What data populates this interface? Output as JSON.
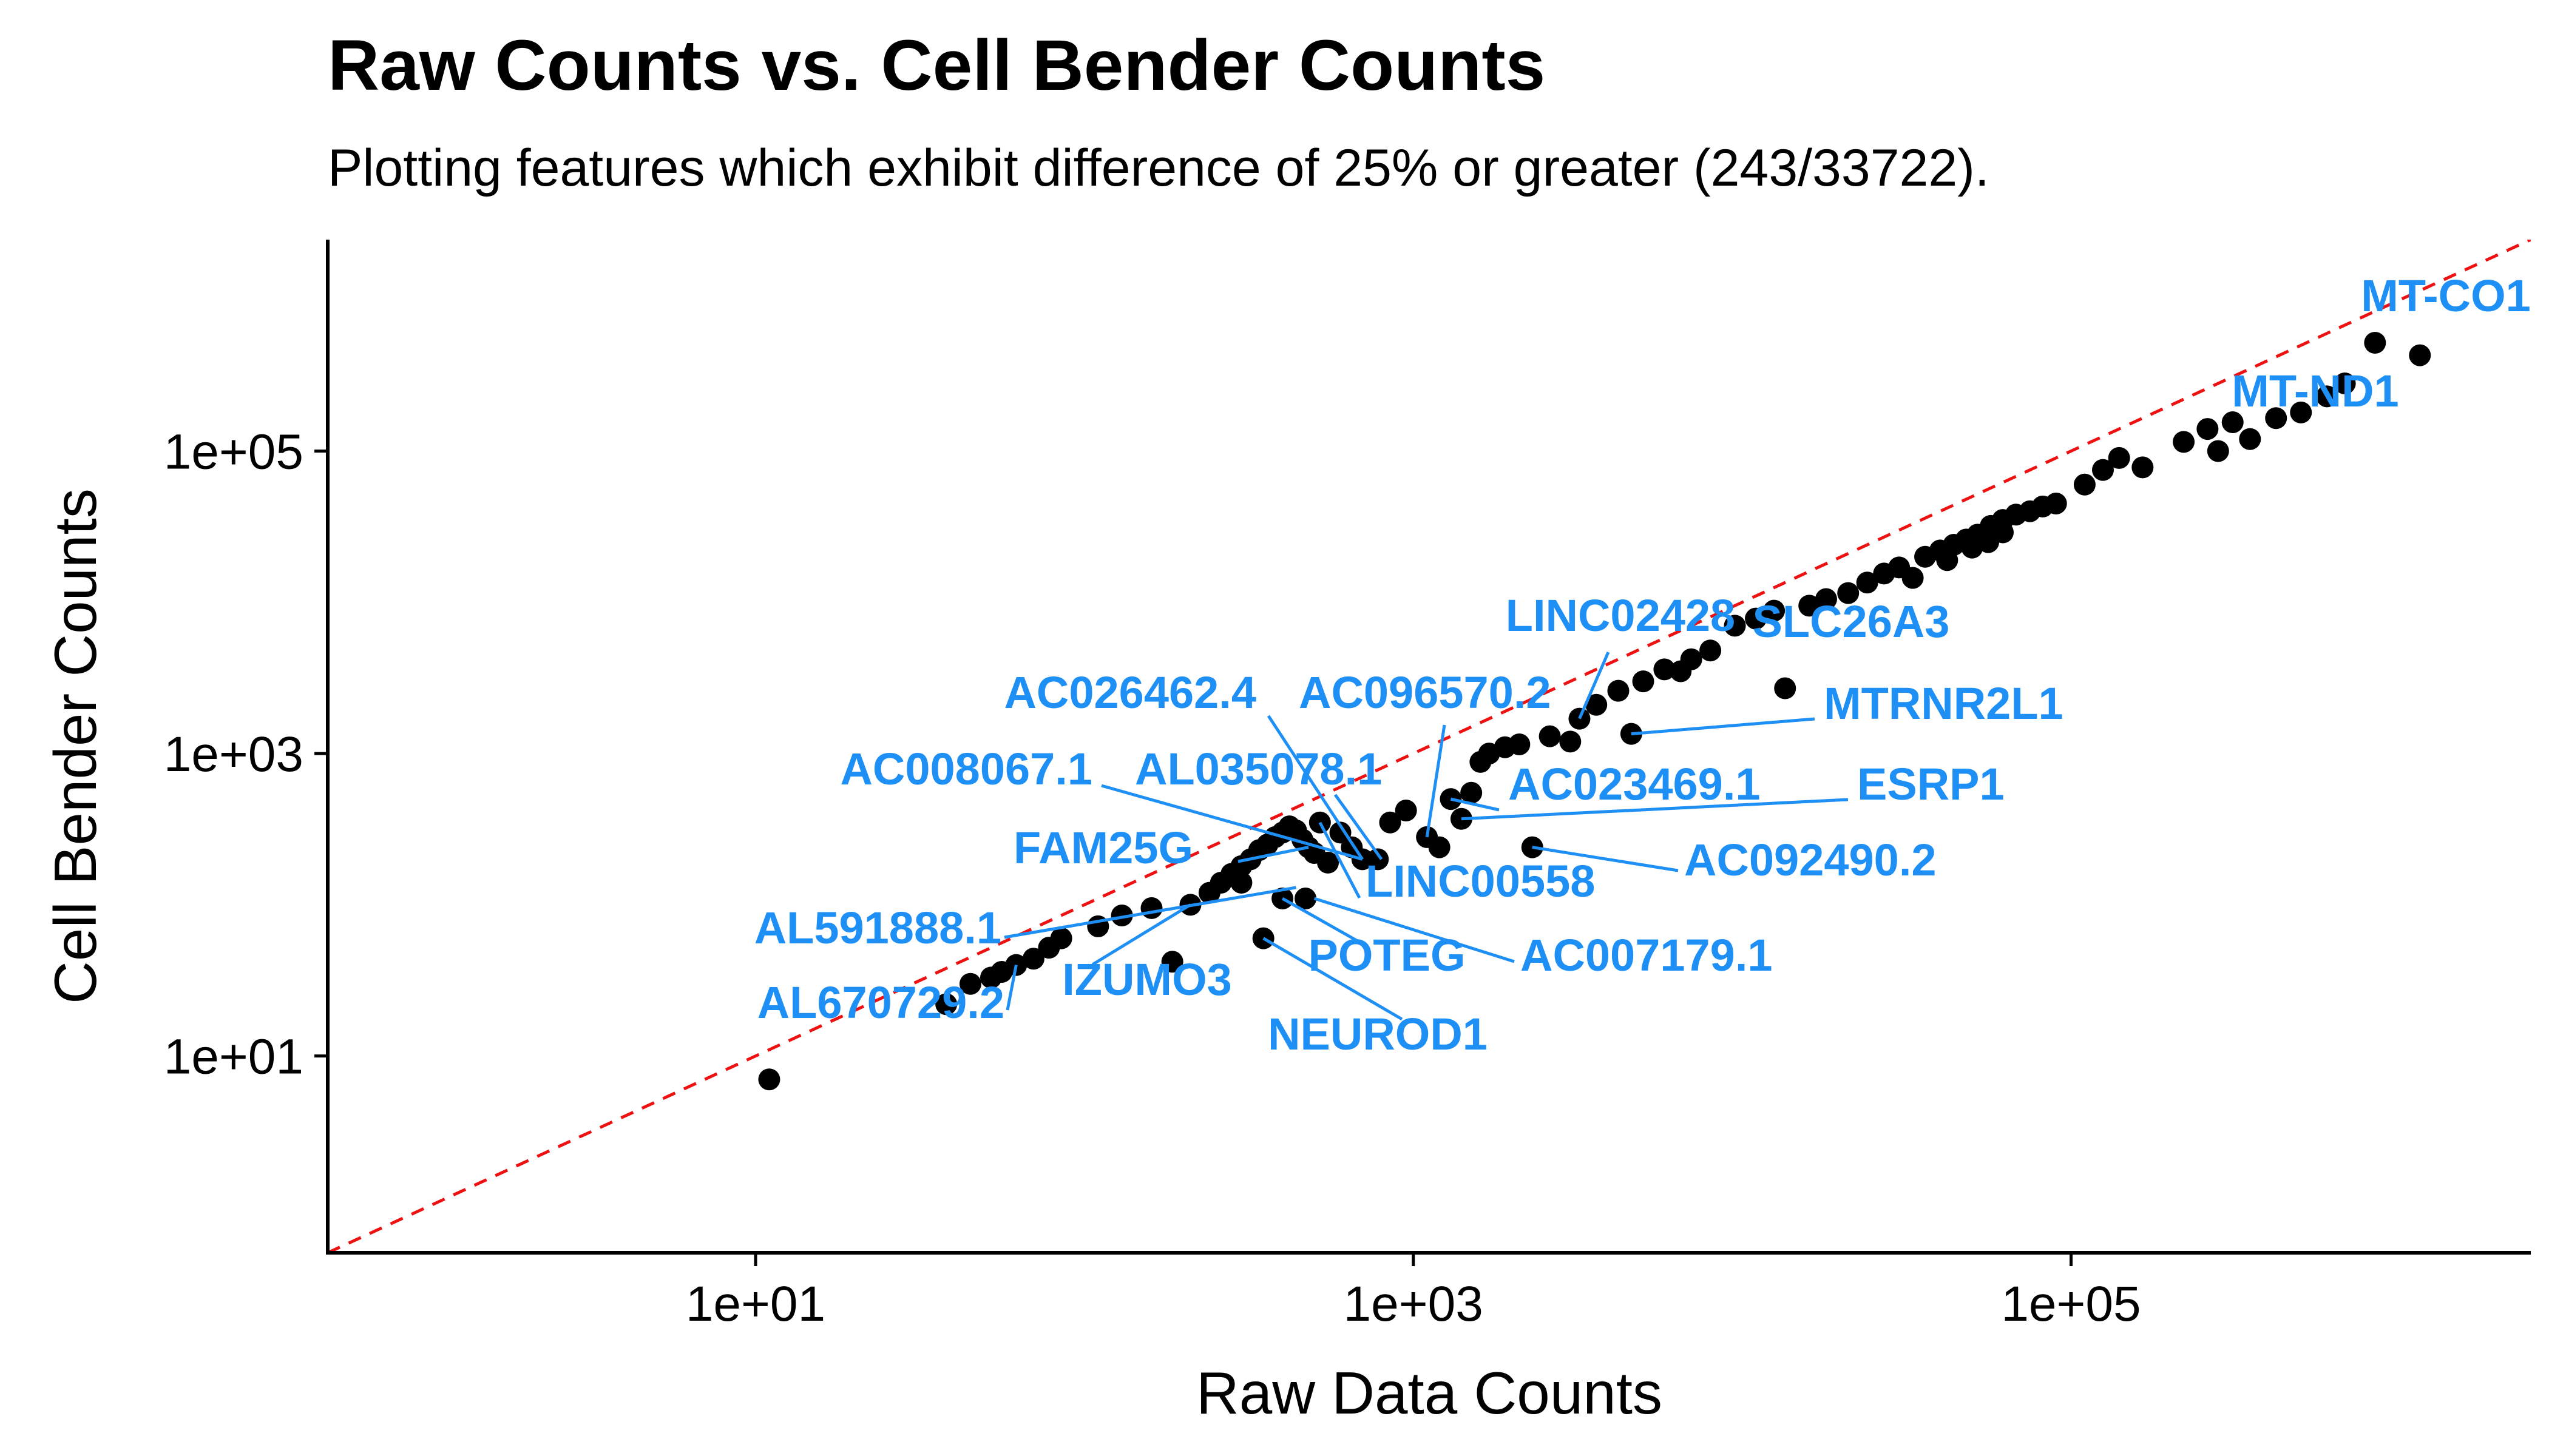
{
  "chart_data": {
    "type": "scatter",
    "title": "Raw Counts vs. Cell Bender Counts",
    "subtitle": "Plotting features which exhibit difference of 25% or greater (243/33722).",
    "xlabel": "Raw Data Counts",
    "ylabel": "Cell Bender Counts",
    "x_scale": "log10",
    "y_scale": "log10",
    "xlim": [
      0.5,
      2500000
    ],
    "ylim": [
      0.5,
      2500000
    ],
    "x_ticks": [
      10,
      1000,
      100000
    ],
    "y_ticks": [
      10,
      1000,
      100000
    ],
    "x_tick_labels": [
      "1e+01",
      "1e+03",
      "1e+05"
    ],
    "y_tick_labels": [
      "1e+01",
      "1e+03",
      "1e+05"
    ],
    "grid": false,
    "reference_line": {
      "type": "y=x",
      "color": "#ee1111",
      "style": "dashed"
    },
    "point_color": "#000000",
    "label_color": "#1e8ff5",
    "points": [
      {
        "x": 11,
        "y": 7
      },
      {
        "x": 38,
        "y": 22
      },
      {
        "x": 45,
        "y": 30
      },
      {
        "x": 52,
        "y": 33
      },
      {
        "x": 56,
        "y": 36
      },
      {
        "x": 62,
        "y": 40
      },
      {
        "x": 70,
        "y": 44
      },
      {
        "x": 78,
        "y": 52
      },
      {
        "x": 85,
        "y": 60
      },
      {
        "x": 110,
        "y": 72
      },
      {
        "x": 130,
        "y": 85
      },
      {
        "x": 160,
        "y": 95
      },
      {
        "x": 185,
        "y": 42
      },
      {
        "x": 210,
        "y": 100
      },
      {
        "x": 240,
        "y": 120
      },
      {
        "x": 260,
        "y": 140
      },
      {
        "x": 280,
        "y": 160
      },
      {
        "x": 300,
        "y": 180
      },
      {
        "x": 320,
        "y": 200
      },
      {
        "x": 340,
        "y": 230
      },
      {
        "x": 360,
        "y": 250
      },
      {
        "x": 380,
        "y": 280
      },
      {
        "x": 400,
        "y": 300
      },
      {
        "x": 420,
        "y": 330
      },
      {
        "x": 440,
        "y": 310
      },
      {
        "x": 460,
        "y": 270
      },
      {
        "x": 480,
        "y": 240
      },
      {
        "x": 500,
        "y": 220
      },
      {
        "x": 520,
        "y": 350
      },
      {
        "x": 300,
        "y": 140
      },
      {
        "x": 350,
        "y": 60
      },
      {
        "x": 400,
        "y": 110
      },
      {
        "x": 470,
        "y": 110
      },
      {
        "x": 550,
        "y": 190
      },
      {
        "x": 600,
        "y": 300
      },
      {
        "x": 650,
        "y": 240
      },
      {
        "x": 700,
        "y": 200
      },
      {
        "x": 780,
        "y": 200
      },
      {
        "x": 850,
        "y": 350
      },
      {
        "x": 950,
        "y": 420
      },
      {
        "x": 1100,
        "y": 280
      },
      {
        "x": 1200,
        "y": 240
      },
      {
        "x": 1300,
        "y": 500
      },
      {
        "x": 1400,
        "y": 370
      },
      {
        "x": 1500,
        "y": 550
      },
      {
        "x": 1600,
        "y": 880
      },
      {
        "x": 1700,
        "y": 1000
      },
      {
        "x": 1900,
        "y": 1100
      },
      {
        "x": 2100,
        "y": 1150
      },
      {
        "x": 2300,
        "y": 240
      },
      {
        "x": 2600,
        "y": 1300
      },
      {
        "x": 3000,
        "y": 1200
      },
      {
        "x": 3200,
        "y": 1700
      },
      {
        "x": 3600,
        "y": 2100
      },
      {
        "x": 4200,
        "y": 2600
      },
      {
        "x": 4600,
        "y": 1350
      },
      {
        "x": 5000,
        "y": 3000
      },
      {
        "x": 5800,
        "y": 3600
      },
      {
        "x": 6500,
        "y": 3500
      },
      {
        "x": 7000,
        "y": 4200
      },
      {
        "x": 8000,
        "y": 4800
      },
      {
        "x": 9500,
        "y": 7000
      },
      {
        "x": 11000,
        "y": 7800
      },
      {
        "x": 12500,
        "y": 8800
      },
      {
        "x": 13500,
        "y": 2700
      },
      {
        "x": 16000,
        "y": 9500
      },
      {
        "x": 18000,
        "y": 10500
      },
      {
        "x": 21000,
        "y": 11500
      },
      {
        "x": 24000,
        "y": 13500
      },
      {
        "x": 27000,
        "y": 15500
      },
      {
        "x": 30000,
        "y": 17000
      },
      {
        "x": 33000,
        "y": 14500
      },
      {
        "x": 36000,
        "y": 20000
      },
      {
        "x": 40000,
        "y": 22000
      },
      {
        "x": 44000,
        "y": 24000
      },
      {
        "x": 48000,
        "y": 26000
      },
      {
        "x": 52000,
        "y": 28000
      },
      {
        "x": 57000,
        "y": 32000
      },
      {
        "x": 62000,
        "y": 35000
      },
      {
        "x": 68000,
        "y": 38000
      },
      {
        "x": 75000,
        "y": 40000
      },
      {
        "x": 82000,
        "y": 43000
      },
      {
        "x": 42000,
        "y": 19000
      },
      {
        "x": 50000,
        "y": 23000
      },
      {
        "x": 56000,
        "y": 25000
      },
      {
        "x": 62000,
        "y": 29000
      },
      {
        "x": 90000,
        "y": 45000
      },
      {
        "x": 110000,
        "y": 60000
      },
      {
        "x": 125000,
        "y": 75000
      },
      {
        "x": 140000,
        "y": 90000
      },
      {
        "x": 165000,
        "y": 78000
      },
      {
        "x": 220000,
        "y": 115000
      },
      {
        "x": 260000,
        "y": 140000
      },
      {
        "x": 310000,
        "y": 155000
      },
      {
        "x": 280000,
        "y": 100000
      },
      {
        "x": 350000,
        "y": 120000
      },
      {
        "x": 420000,
        "y": 165000
      },
      {
        "x": 500000,
        "y": 180000
      },
      {
        "x": 600000,
        "y": 230000
      },
      {
        "x": 680000,
        "y": 280000
      },
      {
        "x": 840000,
        "y": 520000
      },
      {
        "x": 1150000,
        "y": 430000
      }
    ],
    "labels": [
      {
        "text": "MT-CO1",
        "x": 840000,
        "y": 520000
      },
      {
        "text": "MT-ND1",
        "x": 600000,
        "y": 230000
      },
      {
        "text": "LINC02428",
        "x": 3200,
        "y": 1700
      },
      {
        "text": "SLC26A3",
        "x": 13500,
        "y": 2700
      },
      {
        "text": "MTRNR2L1",
        "x": 4600,
        "y": 1350
      },
      {
        "text": "AC026462.4",
        "x": 700,
        "y": 200
      },
      {
        "text": "AC096570.2",
        "x": 1100,
        "y": 280
      },
      {
        "text": "AC008067.1",
        "x": 700,
        "y": 200
      },
      {
        "text": "AL035078.1",
        "x": 800,
        "y": 200
      },
      {
        "text": "AC023469.1",
        "x": 1300,
        "y": 500
      },
      {
        "text": "ESRP1",
        "x": 1400,
        "y": 370
      },
      {
        "text": "FAM25G",
        "x": 480,
        "y": 240
      },
      {
        "text": "AC092490.2",
        "x": 2300,
        "y": 240
      },
      {
        "text": "LINC00558",
        "x": 520,
        "y": 350
      },
      {
        "text": "AL591888.1",
        "x": 440,
        "y": 130
      },
      {
        "text": "AC007179.1",
        "x": 500,
        "y": 110
      },
      {
        "text": "POTEG",
        "x": 400,
        "y": 110
      },
      {
        "text": "IZUMO3",
        "x": 210,
        "y": 100
      },
      {
        "text": "AL670729.2",
        "x": 62,
        "y": 40
      },
      {
        "text": "NEUROD1",
        "x": 350,
        "y": 60
      }
    ]
  }
}
